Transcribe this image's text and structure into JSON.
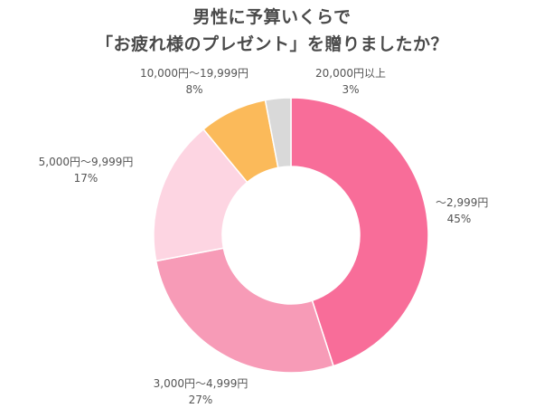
{
  "chart_data": {
    "type": "pie",
    "title_line1": "男性に予算いくらで",
    "title_line2": "「お疲れ様のプレゼント」を贈りましたか？",
    "unit": "%",
    "categories": [
      "～2,999円",
      "3,000円～4,999円",
      "5,000円～9,999円",
      "10,000円～19,999円",
      "20,000円以上"
    ],
    "values": [
      45,
      27,
      17,
      8,
      3
    ],
    "colors": [
      "#f86d99",
      "#f79bb7",
      "#fdd5e2",
      "#fbba5a",
      "#d9d9d9"
    ],
    "legend": "none"
  }
}
